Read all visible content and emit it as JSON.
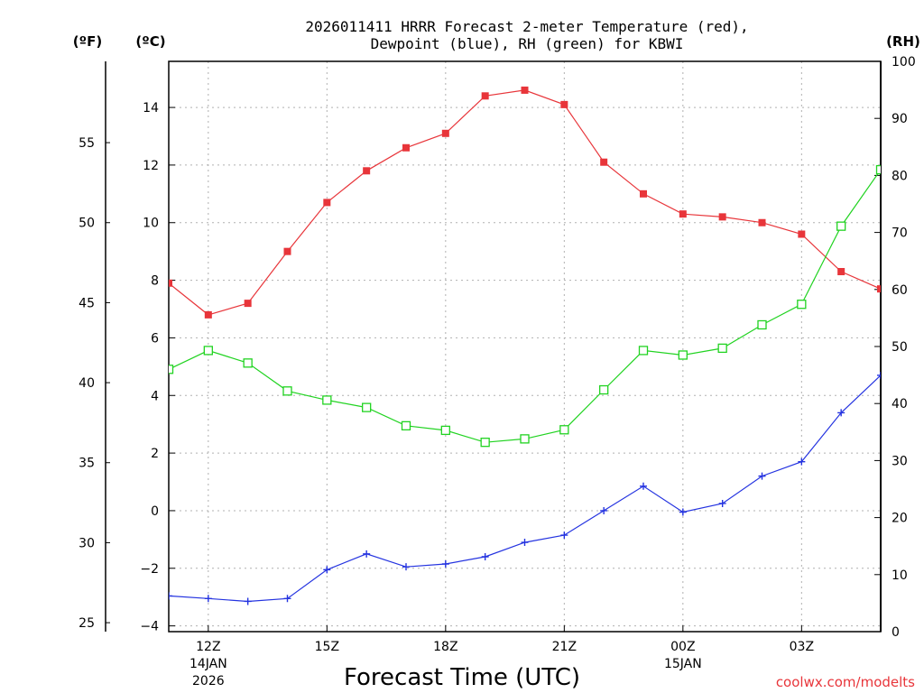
{
  "chart_data": {
    "type": "line",
    "title": "2026011411 HRRR Forecast 2-meter Temperature (red),",
    "subtitle": "Dewpoint (blue), RH (green) for KBWI",
    "xlabel": "Forecast Time (UTC)",
    "credit": "coolwx.com/modelts",
    "unit_f_label": "(ºF)",
    "unit_c_label": "(ºC)",
    "unit_rh_label": "(RH)",
    "x": [
      11,
      12,
      13,
      14,
      15,
      16,
      17,
      18,
      19,
      20,
      21,
      22,
      23,
      24,
      25,
      26,
      27,
      28,
      29
    ],
    "x_range": [
      11,
      29
    ],
    "x_ticks": [
      {
        "x": 12,
        "line1": "12Z",
        "line2": "14JAN",
        "line3": "2026"
      },
      {
        "x": 15,
        "line1": "15Z",
        "line2": "",
        "line3": ""
      },
      {
        "x": 18,
        "line1": "18Z",
        "line2": "",
        "line3": ""
      },
      {
        "x": 21,
        "line1": "21Z",
        "line2": "",
        "line3": ""
      },
      {
        "x": 24,
        "line1": "00Z",
        "line2": "15JAN",
        "line3": ""
      },
      {
        "x": 27,
        "line1": "03Z",
        "line2": "",
        "line3": ""
      }
    ],
    "y_celsius": {
      "range": [
        -4.2,
        15.6
      ],
      "ticks": [
        "-4",
        "-2",
        "0",
        "2",
        "4",
        "6",
        "8",
        "10",
        "12",
        "14"
      ]
    },
    "y_fahrenheit": {
      "ticks": [
        "25",
        "30",
        "35",
        "40",
        "45",
        "50",
        "55"
      ]
    },
    "y_rh": {
      "range": [
        0,
        100
      ],
      "ticks": [
        "0",
        "10",
        "20",
        "30",
        "40",
        "50",
        "60",
        "70",
        "80",
        "90",
        "100"
      ]
    },
    "grid": true,
    "series": [
      {
        "name": "Temperature",
        "axis": "celsius",
        "color": "#e8353a",
        "marker": "filled-square",
        "values": [
          7.9,
          6.8,
          7.2,
          9.0,
          10.7,
          11.8,
          12.6,
          13.1,
          14.4,
          14.6,
          14.1,
          12.1,
          11.0,
          10.3,
          10.2,
          10.0,
          9.6,
          8.3,
          7.7
        ]
      },
      {
        "name": "Dewpoint",
        "axis": "celsius",
        "color": "#2433e0",
        "marker": "plus",
        "values": [
          -2.96,
          -3.05,
          -3.15,
          -3.05,
          -2.05,
          -1.5,
          -1.95,
          -1.85,
          -1.6,
          -1.1,
          -0.85,
          0.0,
          0.85,
          -0.05,
          0.25,
          1.2,
          1.7,
          3.4,
          4.7
        ]
      },
      {
        "name": "RH",
        "axis": "rh",
        "color": "#21d321",
        "marker": "open-square",
        "values": [
          46.0,
          49.3,
          47.1,
          42.2,
          40.6,
          39.3,
          36.1,
          35.3,
          33.2,
          33.8,
          35.4,
          42.4,
          49.3,
          48.5,
          49.7,
          53.8,
          57.4,
          71.1,
          81.0
        ]
      }
    ]
  }
}
